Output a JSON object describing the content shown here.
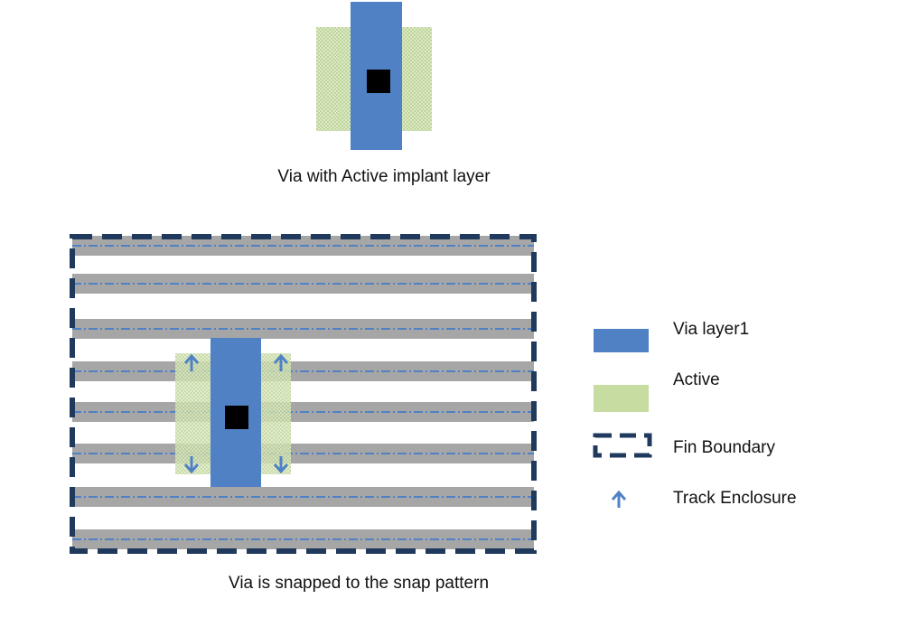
{
  "top_caption": "Via with Active implant layer",
  "bottom_caption": "Via is snapped to the snap pattern",
  "legend": {
    "via": "Via layer1",
    "active": "Active",
    "fin_boundary": "Fin Boundary",
    "track_enclosure": "Track Enclosure"
  },
  "colors": {
    "via": "#4f81c4",
    "active": "#c6dca0",
    "fin_boundary": "#1f3a5c",
    "track": "#a6a6a6",
    "track_centerline": "#4f81c4",
    "contact": "#000000"
  },
  "tracks": 8
}
